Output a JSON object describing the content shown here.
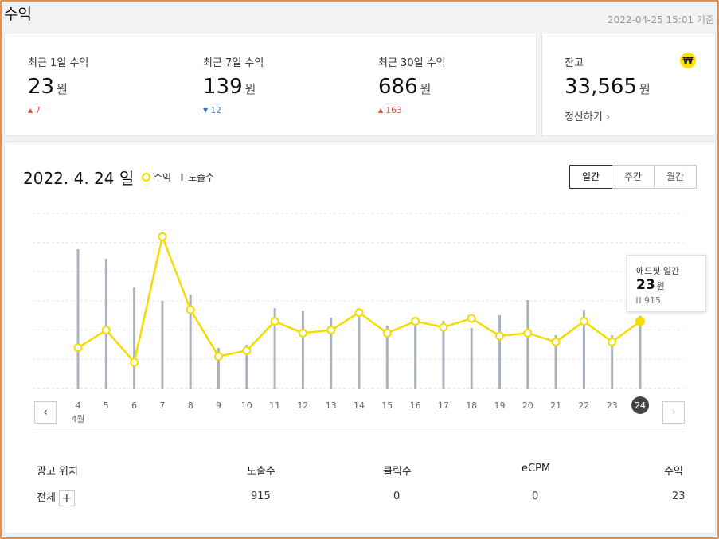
{
  "page": {
    "title": "수익",
    "timestamp": "2022-04-25 15:01 기준"
  },
  "stats": [
    {
      "label": "최근 1일 수익",
      "value": "23",
      "unit": "원",
      "change": "7",
      "direction": "up"
    },
    {
      "label": "최근 7일 수익",
      "value": "139",
      "unit": "원",
      "change": "12",
      "direction": "down"
    },
    {
      "label": "최근 30일 수익",
      "value": "686",
      "unit": "원",
      "change": "163",
      "direction": "up"
    }
  ],
  "balance": {
    "label": "잔고",
    "value": "33,565",
    "unit": "원",
    "settle_label": "정산하기",
    "icon": "won-icon",
    "icon_glyph": "₩"
  },
  "chart": {
    "date_label": "2022. 4. 24 일",
    "legend": {
      "revenue": "수익",
      "impressions": "노출수"
    },
    "periods": [
      {
        "label": "일간",
        "active": true
      },
      {
        "label": "주간",
        "active": false
      },
      {
        "label": "월간",
        "active": false
      }
    ],
    "month_label": "4월",
    "tooltip": {
      "title": "애드핏 일간",
      "value": "23",
      "unit": "원",
      "count": "915"
    }
  },
  "chart_data": {
    "type": "line",
    "categories": [
      "4",
      "5",
      "6",
      "7",
      "8",
      "9",
      "10",
      "11",
      "12",
      "13",
      "14",
      "15",
      "16",
      "17",
      "18",
      "19",
      "20",
      "21",
      "22",
      "23",
      "24"
    ],
    "series": [
      {
        "name": "수익",
        "color": "#f5dc00",
        "values": [
          14,
          20,
          9,
          52,
          27,
          11,
          13,
          23,
          19,
          20,
          26,
          19,
          23,
          21,
          24,
          18,
          19,
          16,
          23,
          16,
          23
        ]
      },
      {
        "name": "노출수",
        "color": "#aab4be",
        "values": [
          1750,
          1630,
          1270,
          1100,
          1180,
          510,
          550,
          1010,
          980,
          890,
          990,
          790,
          900,
          850,
          760,
          920,
          1110,
          670,
          990,
          670,
          915
        ]
      }
    ],
    "selected_index": 20,
    "grid": true
  },
  "table": {
    "headers": [
      "광고 위치",
      "노출수",
      "클릭수",
      "eCPM",
      "수익"
    ],
    "rows": [
      {
        "position": "전체",
        "impressions": "915",
        "clicks": "0",
        "ecpm": "0",
        "revenue": "23"
      }
    ]
  }
}
